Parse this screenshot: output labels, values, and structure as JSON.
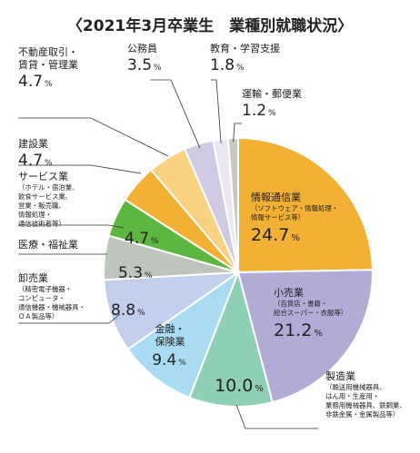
{
  "chart_data": {
    "type": "pie",
    "title": "〈2021年3月卒業生　業種別就職状況〉",
    "unit": "%",
    "slices": [
      {
        "name": "情報通信業",
        "value": 24.7,
        "color": "#f2b035",
        "note": [
          "（ソフトウェア・情報処理・",
          "情報サービス等）"
        ]
      },
      {
        "name": "小売業",
        "value": 21.2,
        "color": "#b2abd6",
        "note": [
          "（百貨店・書籍・",
          "総合スーパー・衣服等）"
        ]
      },
      {
        "name": "製造業",
        "value": 10.0,
        "color": "#8fcfb6",
        "note": [
          "（輸送用機械器具、",
          "はん用・生産用・",
          "業務用機械器具、鉄鋼業、",
          "非鉄金属・金属製品等）"
        ]
      },
      {
        "name": "金融・保険業",
        "value": 9.4,
        "color": "#a9dcf3",
        "note": []
      },
      {
        "name": "卸売業",
        "value": 8.8,
        "color": "#c1cfec",
        "note": [
          "（精密電子機器・",
          "コンピュータ・",
          "通信機器・機械器具・",
          "ＯＡ製品等）"
        ]
      },
      {
        "name": "医療・福祉業",
        "value": 5.3,
        "color": "#bfc5bd",
        "note": []
      },
      {
        "name": "サービス業",
        "value": 4.7,
        "color": "#5cb63f",
        "note": [
          "（ホテル・宿泊業、",
          "飲食サービス業、",
          "営業・販売職、",
          "情報処理・",
          "通信技術者等）"
        ]
      },
      {
        "name": "建設業",
        "value": 4.7,
        "color": "#f2b035",
        "note": []
      },
      {
        "name": "不動産取引・賃貸・管理業",
        "value": 4.7,
        "color": "#f9d281",
        "note": []
      },
      {
        "name": "公務員",
        "value": 3.5,
        "color": "#d0c9e4",
        "note": []
      },
      {
        "name": "教育・学習支援",
        "value": 1.8,
        "color": "#ece6f2",
        "note": []
      },
      {
        "name": "運輸・郵便業",
        "value": 1.2,
        "color": "#c5cbc3",
        "note": []
      }
    ]
  }
}
